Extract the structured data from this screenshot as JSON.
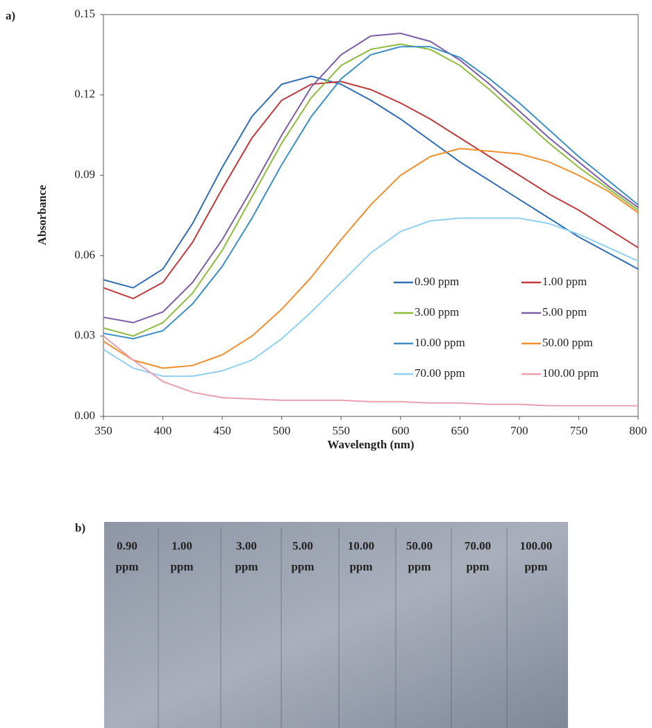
{
  "chart_data": {
    "type": "line",
    "label": "a)",
    "x_label": "Wavelength (nm)",
    "y_label": "Absorbance",
    "x": [
      350,
      375,
      400,
      425,
      450,
      475,
      500,
      525,
      550,
      575,
      600,
      625,
      650,
      675,
      700,
      725,
      750,
      775,
      800
    ],
    "xlim": [
      350,
      800
    ],
    "xticks": [
      350,
      400,
      450,
      500,
      550,
      600,
      650,
      700,
      750,
      800
    ],
    "ylim": [
      0,
      0.15
    ],
    "yticks": [
      {
        "value": 0,
        "label": "0.00"
      },
      0.03,
      0.06,
      0.09,
      0.12,
      0.15
    ],
    "series": [
      {
        "name": "0.90 ppm",
        "color": "#2f6db5",
        "values": [
          0.051,
          0.048,
          0.055,
          0.072,
          0.093,
          0.112,
          0.124,
          0.127,
          0.124,
          0.118,
          0.111,
          0.103,
          0.095,
          0.088,
          0.081,
          0.074,
          0.067,
          0.061,
          0.055
        ]
      },
      {
        "name": "1.00 ppm",
        "color": "#c0393b",
        "values": [
          0.048,
          0.044,
          0.05,
          0.065,
          0.085,
          0.104,
          0.118,
          0.124,
          0.125,
          0.122,
          0.117,
          0.111,
          0.104,
          0.097,
          0.09,
          0.083,
          0.077,
          0.07,
          0.063
        ]
      },
      {
        "name": "3.00 ppm",
        "color": "#8dbb3c",
        "values": [
          0.033,
          0.03,
          0.035,
          0.046,
          0.062,
          0.082,
          0.102,
          0.119,
          0.131,
          0.137,
          0.139,
          0.137,
          0.131,
          0.122,
          0.112,
          0.102,
          0.093,
          0.085,
          0.077
        ]
      },
      {
        "name": "5.00 ppm",
        "color": "#7b5ea7",
        "values": [
          0.037,
          0.035,
          0.039,
          0.05,
          0.066,
          0.085,
          0.105,
          0.123,
          0.135,
          0.142,
          0.143,
          0.14,
          0.133,
          0.124,
          0.114,
          0.104,
          0.095,
          0.086,
          0.078
        ]
      },
      {
        "name": "10.00 ppm",
        "color": "#3b8fc4",
        "values": [
          0.031,
          0.029,
          0.032,
          0.042,
          0.056,
          0.074,
          0.094,
          0.112,
          0.126,
          0.135,
          0.138,
          0.138,
          0.134,
          0.126,
          0.117,
          0.107,
          0.097,
          0.088,
          0.079
        ]
      },
      {
        "name": "50.00 ppm",
        "color": "#f28e2b",
        "values": [
          0.028,
          0.021,
          0.018,
          0.019,
          0.023,
          0.03,
          0.04,
          0.052,
          0.066,
          0.079,
          0.09,
          0.097,
          0.1,
          0.099,
          0.098,
          0.095,
          0.09,
          0.084,
          0.076
        ]
      },
      {
        "name": "70.00 ppm",
        "color": "#8fd0f0",
        "values": [
          0.025,
          0.018,
          0.015,
          0.015,
          0.017,
          0.021,
          0.029,
          0.039,
          0.05,
          0.061,
          0.069,
          0.073,
          0.074,
          0.074,
          0.074,
          0.072,
          0.068,
          0.063,
          0.058
        ]
      },
      {
        "name": "100.00 ppm",
        "color": "#e8a0b0",
        "values": [
          0.03,
          0.021,
          0.013,
          0.009,
          0.007,
          0.0065,
          0.006,
          0.006,
          0.006,
          0.0055,
          0.0055,
          0.005,
          0.005,
          0.0045,
          0.0045,
          0.004,
          0.004,
          0.004,
          0.004
        ]
      }
    ]
  },
  "photo": {
    "label": "b)",
    "tubes": [
      {
        "concentration": "0.90",
        "unit": "ppm"
      },
      {
        "concentration": "1.00",
        "unit": "ppm"
      },
      {
        "concentration": "3.00",
        "unit": "ppm"
      },
      {
        "concentration": "5.00",
        "unit": "ppm"
      },
      {
        "concentration": "10.00",
        "unit": "ppm"
      },
      {
        "concentration": "50.00",
        "unit": "ppm"
      },
      {
        "concentration": "70.00",
        "unit": "ppm"
      },
      {
        "concentration": "100.00",
        "unit": "ppm"
      }
    ]
  }
}
